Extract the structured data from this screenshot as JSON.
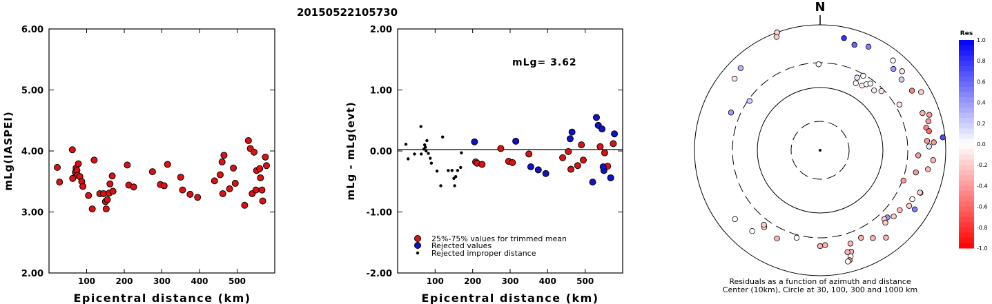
{
  "title": "20150522105730",
  "colors": {
    "red": "#dd1111",
    "blue": "#1111cc",
    "black": "#000000"
  },
  "chart_data": [
    {
      "type": "scatter",
      "xlabel": "Epicentral distance (km)",
      "ylabel": "mLg(IASPEI)",
      "xlim": [
        0,
        600
      ],
      "ylim": [
        2.0,
        6.0
      ],
      "xticks": [
        100,
        200,
        300,
        400,
        500
      ],
      "yticks": [
        "2.00",
        "3.00",
        "4.00",
        "5.00",
        "6.00"
      ],
      "series": [
        {
          "color": "red",
          "points": [
            [
              22,
              3.73
            ],
            [
              28,
              3.49
            ],
            [
              62,
              4.02
            ],
            [
              63,
              3.55
            ],
            [
              70,
              3.65
            ],
            [
              72,
              3.72
            ],
            [
              74,
              3.68
            ],
            [
              76,
              3.6
            ],
            [
              78,
              3.79
            ],
            [
              82,
              3.58
            ],
            [
              87,
              3.5
            ],
            [
              90,
              3.42
            ],
            [
              105,
              3.27
            ],
            [
              115,
              3.05
            ],
            [
              120,
              3.85
            ],
            [
              135,
              3.3
            ],
            [
              145,
              3.3
            ],
            [
              150,
              3.17
            ],
            [
              152,
              3.05
            ],
            [
              155,
              3.2
            ],
            [
              160,
              3.31
            ],
            [
              162,
              3.46
            ],
            [
              168,
              3.59
            ],
            [
              170,
              3.34
            ],
            [
              208,
              3.77
            ],
            [
              212,
              3.44
            ],
            [
              225,
              3.41
            ],
            [
              275,
              3.66
            ],
            [
              296,
              3.45
            ],
            [
              306,
              3.43
            ],
            [
              315,
              3.78
            ],
            [
              350,
              3.57
            ],
            [
              355,
              3.36
            ],
            [
              375,
              3.29
            ],
            [
              395,
              3.24
            ],
            [
              440,
              3.51
            ],
            [
              455,
              3.61
            ],
            [
              460,
              3.82
            ],
            [
              462,
              3.3
            ],
            [
              465,
              3.93
            ],
            [
              480,
              3.38
            ],
            [
              490,
              3.72
            ],
            [
              495,
              3.47
            ],
            [
              520,
              3.11
            ],
            [
              530,
              4.17
            ],
            [
              535,
              4.04
            ],
            [
              540,
              3.3
            ],
            [
              545,
              3.98
            ],
            [
              550,
              3.36
            ],
            [
              552,
              3.68
            ],
            [
              560,
              3.71
            ],
            [
              562,
              3.56
            ],
            [
              566,
              3.36
            ],
            [
              568,
              3.18
            ],
            [
              575,
              3.9
            ],
            [
              578,
              3.76
            ]
          ]
        }
      ]
    },
    {
      "type": "scatter",
      "xlabel": "Epicentral distance (km)",
      "ylabel": "mLg - mLg(evt)",
      "annotation": "mLg= 3.62",
      "xlim": [
        0,
        600
      ],
      "ylim": [
        -2.0,
        2.0
      ],
      "xticks": [
        100,
        200,
        300,
        400,
        500
      ],
      "yticks": [
        "-2.00",
        "-1.00",
        "0.00",
        "1.00",
        "2.00"
      ],
      "zero_line": true,
      "legend": [
        {
          "label": "25%-75% values for trimmed mean",
          "color": "red",
          "marker": "circle"
        },
        {
          "label": "Rejected values",
          "color": "blue",
          "marker": "circle"
        },
        {
          "label": "Rejected improper distance",
          "color": "black",
          "marker": "dot"
        }
      ],
      "series": [
        {
          "name": "25%-75% values for trimmed mean",
          "color": "red",
          "points": [
            [
              208,
              -0.18
            ],
            [
              212,
              -0.2
            ],
            [
              225,
              -0.22
            ],
            [
              275,
              0.04
            ],
            [
              296,
              -0.17
            ],
            [
              306,
              -0.19
            ],
            [
              350,
              -0.05
            ],
            [
              440,
              -0.11
            ],
            [
              455,
              -0.01
            ],
            [
              462,
              -0.3
            ],
            [
              480,
              -0.24
            ],
            [
              490,
              0.1
            ],
            [
              495,
              -0.15
            ],
            [
              540,
              0.07
            ],
            [
              552,
              -0.03
            ],
            [
              560,
              -0.25
            ],
            [
              575,
              0.12
            ]
          ]
        },
        {
          "name": "Rejected values",
          "color": "blue",
          "points": [
            [
              205,
              0.15
            ],
            [
              315,
              0.16
            ],
            [
              355,
              -0.26
            ],
            [
              375,
              -0.31
            ],
            [
              395,
              -0.37
            ],
            [
              460,
              0.2
            ],
            [
              465,
              0.31
            ],
            [
              520,
              -0.51
            ],
            [
              530,
              0.55
            ],
            [
              535,
              0.42
            ],
            [
              545,
              0.36
            ],
            [
              550,
              -0.32
            ],
            [
              548,
              -0.26
            ],
            [
              568,
              -0.44
            ],
            [
              578,
              0.28
            ]
          ]
        },
        {
          "name": "Rejected improper distance",
          "color": "black",
          "points": [
            [
              22,
              0.11
            ],
            [
              28,
              -0.13
            ],
            [
              45,
              -0.05
            ],
            [
              62,
              0.4
            ],
            [
              63,
              -0.05
            ],
            [
              70,
              0.03
            ],
            [
              72,
              0.1
            ],
            [
              74,
              0.06
            ],
            [
              76,
              0.0
            ],
            [
              78,
              0.17
            ],
            [
              82,
              -0.04
            ],
            [
              87,
              -0.12
            ],
            [
              90,
              -0.2
            ],
            [
              105,
              -0.33
            ],
            [
              120,
              0.23
            ],
            [
              115,
              -0.57
            ],
            [
              135,
              -0.32
            ],
            [
              145,
              -0.32
            ],
            [
              150,
              -0.45
            ],
            [
              152,
              -0.57
            ],
            [
              155,
              -0.42
            ],
            [
              160,
              -0.32
            ],
            [
              168,
              -0.27
            ],
            [
              170,
              -0.03
            ]
          ]
        }
      ]
    },
    {
      "type": "polar_scatter",
      "north_label": "N",
      "caption_line1": "Residuals as a function of azimuth and distance",
      "caption_line2": "Center (10km), Circle at 30, 100, 300 and 1000 km",
      "rings_km": [
        30,
        100,
        300,
        1000
      ],
      "colorbar": {
        "title": "Res",
        "ticks": [
          "1.0",
          "0.8",
          "0.6",
          "0.4",
          "0.2",
          "0.0",
          "-0.2",
          "-0.4",
          "-0.6",
          "-0.8",
          "-1.0"
        ]
      },
      "points_note": "each point: [azimuth_deg, distance_km, residual]",
      "points": [
        [
          339,
          880,
          -0.2
        ],
        [
          340,
          1000,
          -0.2
        ],
        [
          316,
          700,
          0.3
        ],
        [
          310,
          640,
          -0.1
        ],
        [
          305,
          280,
          0.2
        ],
        [
          359,
          280,
          0.0
        ],
        [
          12,
          710,
          0.8
        ],
        [
          18,
          630,
          0.6
        ],
        [
          25,
          700,
          0.5
        ],
        [
          42,
          600,
          0.4
        ],
        [
          49,
          570,
          0.2
        ],
        [
          39,
          730,
          0.0
        ],
        [
          46,
          690,
          -0.1
        ],
        [
          57,
          600,
          -0.5
        ],
        [
          60,
          750,
          -0.2
        ],
        [
          27,
          230,
          0.1
        ],
        [
          28,
          180,
          0.0
        ],
        [
          30,
          280,
          0.0
        ],
        [
          33,
          190,
          -0.1
        ],
        [
          35,
          220,
          0.0
        ],
        [
          37,
          250,
          0.0
        ],
        [
          42,
          220,
          -0.1
        ],
        [
          46,
          270,
          -0.1
        ],
        [
          60,
          340,
          -0.1
        ],
        [
          70,
          590,
          -0.3
        ],
        [
          72,
          710,
          -0.4
        ],
        [
          75,
          650,
          -0.4
        ],
        [
          78,
          580,
          -0.5
        ],
        [
          80,
          620,
          -0.6
        ],
        [
          84,
          930,
          0.7
        ],
        [
          85,
          560,
          -0.4
        ],
        [
          86,
          690,
          -0.4
        ],
        [
          88,
          590,
          0.1
        ],
        [
          93,
          420,
          -0.4
        ],
        [
          95,
          680,
          -0.3
        ],
        [
          100,
          600,
          -0.3
        ],
        [
          103,
          420,
          -0.4
        ],
        [
          110,
          310,
          -0.4
        ],
        [
          113,
          590,
          -0.2
        ],
        [
          113,
          580,
          -0.2
        ],
        [
          118,
          510,
          0.0
        ],
        [
          122,
          520,
          -0.2
        ],
        [
          122,
          640,
          0.5
        ],
        [
          127,
          440,
          -0.3
        ],
        [
          132,
          430,
          -0.2
        ],
        [
          135,
          380,
          0.4
        ],
        [
          137,
          370,
          -0.2
        ],
        [
          138,
          410,
          -0.2
        ],
        [
          143,
          600,
          -0.3
        ],
        [
          149,
          480,
          -0.3
        ],
        [
          155,
          400,
          -0.3
        ],
        [
          162,
          420,
          -0.3
        ],
        [
          163,
          540,
          -0.3
        ],
        [
          164,
          620,
          0.0
        ],
        [
          165,
          530,
          -0.3
        ],
        [
          165,
          690,
          -0.5
        ],
        [
          166,
          710,
          0.0
        ],
        [
          177,
          380,
          -0.3
        ],
        [
          180,
          390,
          -0.3
        ],
        [
          195,
          330,
          0.0
        ],
        [
          216,
          380,
          -0.2
        ],
        [
          217,
          360,
          -0.2
        ],
        [
          293,
          400,
          0.4
        ],
        [
          220,
          530,
          0.0
        ],
        [
          206,
          420,
          -0.3
        ],
        [
          231,
          600,
          0.0
        ]
      ]
    }
  ]
}
